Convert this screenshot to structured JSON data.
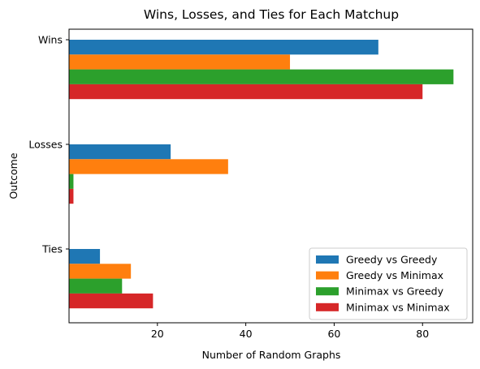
{
  "chart_data": {
    "type": "bar",
    "orientation": "horizontal",
    "title": "Wins, Losses, and Ties for Each Matchup",
    "xlabel": "Number of Random Graphs",
    "ylabel": "Outcome",
    "categories": [
      "Wins",
      "Losses",
      "Ties"
    ],
    "series": [
      {
        "name": "Greedy vs Greedy",
        "color": "#1f77b4",
        "values": [
          70,
          23,
          7
        ]
      },
      {
        "name": "Greedy vs Minimax",
        "color": "#ff7f0e",
        "values": [
          50,
          36,
          14
        ]
      },
      {
        "name": "Minimax vs Greedy",
        "color": "#2ca02c",
        "values": [
          87,
          1,
          12
        ]
      },
      {
        "name": "Minimax vs Minimax",
        "color": "#d62728",
        "values": [
          80,
          1,
          19
        ]
      }
    ],
    "xlim": [
      0,
      91.35
    ],
    "xticks": [
      20,
      40,
      60,
      80
    ],
    "grid": false,
    "legend_position": "bottom-right"
  }
}
